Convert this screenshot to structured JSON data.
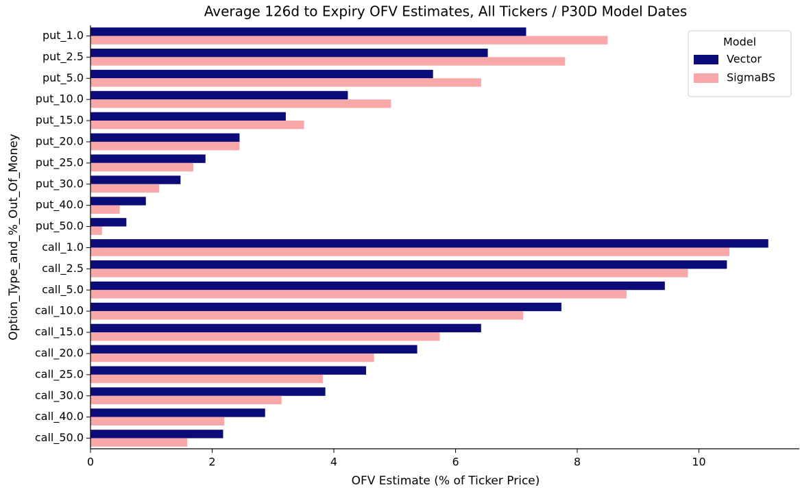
{
  "chart_data": {
    "type": "barh",
    "title": "Average 126d to Expiry OFV Estimates, All Tickers / P30D Model Dates",
    "xlabel": "OFV Estimate (% of Ticker Price)",
    "ylabel": "Option_Type_and_%_Out_Of_Money",
    "categories": [
      "put_1.0",
      "put_2.5",
      "put_5.0",
      "put_10.0",
      "put_15.0",
      "put_20.0",
      "put_25.0",
      "put_30.0",
      "put_40.0",
      "put_50.0",
      "call_1.0",
      "call_2.5",
      "call_5.0",
      "call_10.0",
      "call_15.0",
      "call_20.0",
      "call_25.0",
      "call_30.0",
      "call_40.0",
      "call_50.0"
    ],
    "series": [
      {
        "name": "Vector",
        "color": "#0c0c78",
        "values": [
          7.16,
          6.53,
          5.63,
          4.23,
          3.21,
          2.45,
          1.89,
          1.48,
          0.91,
          0.59,
          11.14,
          10.46,
          9.44,
          7.74,
          6.42,
          5.37,
          4.53,
          3.86,
          2.87,
          2.18
        ]
      },
      {
        "name": "SigmaBS",
        "color": "#f8a8a8",
        "values": [
          8.5,
          7.8,
          6.42,
          4.94,
          3.51,
          2.45,
          1.69,
          1.13,
          0.48,
          0.19,
          10.5,
          9.82,
          8.81,
          7.11,
          5.74,
          4.66,
          3.82,
          3.14,
          2.2,
          1.59
        ]
      }
    ],
    "xlim": [
      0,
      11.65
    ],
    "xticks": [
      0,
      2,
      4,
      6,
      8,
      10
    ],
    "legend": {
      "title": "Model",
      "loc": "upper right"
    }
  }
}
